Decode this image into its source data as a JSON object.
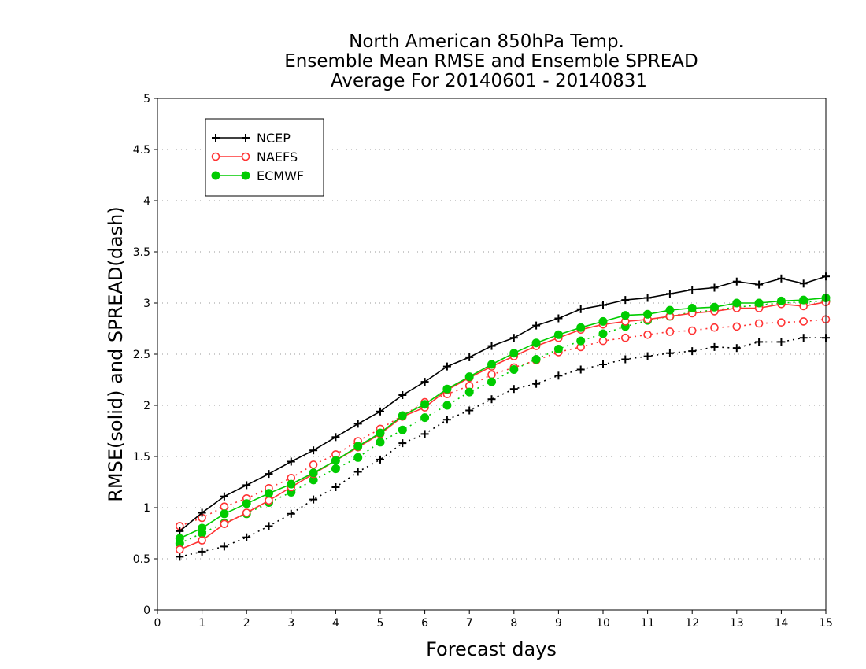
{
  "chart_data": {
    "type": "line",
    "title_lines": [
      "North American 850hPa Temp.",
      "Ensemble Mean RMSE and Ensemble SPREAD",
      "Average For 20140601 - 20140831"
    ],
    "xlabel": "Forecast days",
    "ylabel": "RMSE(solid) and SPREAD(dash)",
    "xlim": [
      0,
      15
    ],
    "ylim": [
      0,
      5
    ],
    "x_ticks": [
      "0",
      "1",
      "2",
      "3",
      "4",
      "5",
      "6",
      "7",
      "8",
      "9",
      "10",
      "11",
      "12",
      "13",
      "14",
      "15"
    ],
    "y_ticks": [
      "0",
      "0.5",
      "1",
      "1.5",
      "2",
      "2.5",
      "3",
      "3.5",
      "4",
      "4.5",
      "5"
    ],
    "grid": "horizontal dotted",
    "legend_position": "top-left",
    "x": [
      0.5,
      1,
      1.5,
      2,
      2.5,
      3,
      3.5,
      4,
      4.5,
      5,
      5.5,
      6,
      6.5,
      7,
      7.5,
      8,
      8.5,
      9,
      9.5,
      10,
      10.5,
      11,
      11.5,
      12,
      12.5,
      13,
      13.5,
      14,
      14.5,
      15
    ],
    "series": [
      {
        "name": "NCEP",
        "color": "#000000",
        "marker": "plus",
        "rmse": [
          0.77,
          0.95,
          1.11,
          1.22,
          1.33,
          1.45,
          1.56,
          1.69,
          1.82,
          1.94,
          2.1,
          2.23,
          2.38,
          2.47,
          2.58,
          2.66,
          2.78,
          2.85,
          2.94,
          2.98,
          3.03,
          3.05,
          3.09,
          3.13,
          3.15,
          3.21,
          3.18,
          3.24,
          3.19,
          3.26
        ],
        "spread": [
          0.52,
          0.57,
          0.62,
          0.71,
          0.82,
          0.94,
          1.08,
          1.2,
          1.35,
          1.47,
          1.63,
          1.72,
          1.86,
          1.95,
          2.06,
          2.16,
          2.21,
          2.29,
          2.35,
          2.4,
          2.45,
          2.48,
          2.51,
          2.53,
          2.57,
          2.56,
          2.62,
          2.62,
          2.66,
          2.66
        ]
      },
      {
        "name": "NAEFS",
        "color": "#ff3333",
        "marker": "open-circle",
        "rmse": [
          0.59,
          0.68,
          0.84,
          0.95,
          1.07,
          1.2,
          1.33,
          1.46,
          1.59,
          1.72,
          1.89,
          1.98,
          2.15,
          2.27,
          2.38,
          2.48,
          2.58,
          2.66,
          2.74,
          2.79,
          2.82,
          2.84,
          2.87,
          2.9,
          2.92,
          2.95,
          2.95,
          2.99,
          2.97,
          3.01
        ],
        "spread": [
          0.82,
          0.9,
          1.01,
          1.09,
          1.19,
          1.29,
          1.42,
          1.52,
          1.65,
          1.77,
          1.9,
          2.03,
          2.11,
          2.19,
          2.3,
          2.37,
          2.44,
          2.52,
          2.57,
          2.63,
          2.66,
          2.69,
          2.72,
          2.73,
          2.76,
          2.77,
          2.8,
          2.81,
          2.82,
          2.84
        ]
      },
      {
        "name": "ECMWF",
        "color": "#00cc00",
        "marker": "filled-circle",
        "rmse": [
          0.7,
          0.8,
          0.94,
          1.04,
          1.14,
          1.23,
          1.34,
          1.46,
          1.6,
          1.73,
          1.9,
          2.01,
          2.16,
          2.28,
          2.4,
          2.51,
          2.61,
          2.69,
          2.76,
          2.82,
          2.88,
          2.89,
          2.93,
          2.95,
          2.96,
          3.0,
          3.0,
          3.02,
          3.03,
          3.05
        ],
        "spread": [
          0.65,
          0.75,
          0.85,
          0.94,
          1.05,
          1.15,
          1.27,
          1.38,
          1.49,
          1.64,
          1.76,
          1.88,
          2.0,
          2.13,
          2.23,
          2.35,
          2.45,
          2.55,
          2.63,
          2.7,
          2.77,
          2.83,
          2.87,
          2.91,
          2.93,
          2.96,
          2.98,
          3.0,
          3.01,
          3.02
        ]
      }
    ]
  }
}
